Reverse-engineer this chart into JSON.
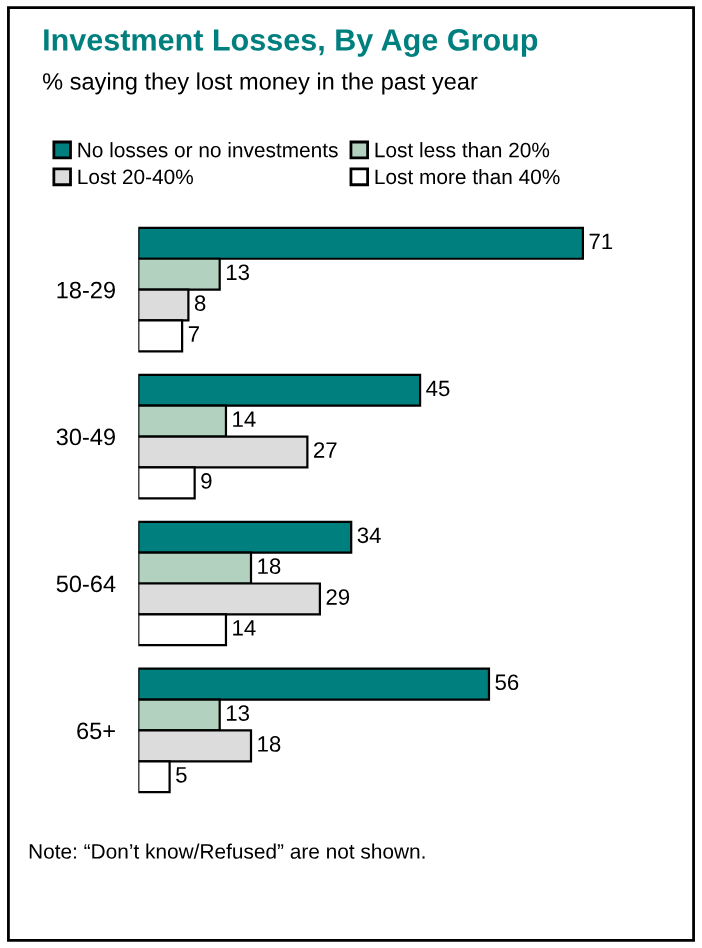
{
  "chart_data": {
    "type": "bar",
    "orientation": "horizontal",
    "title": "Investment Losses, By Age Group",
    "subtitle": "% saying they lost money in the past year",
    "categories": [
      "18-29",
      "30-49",
      "50-64",
      "65+"
    ],
    "series": [
      {
        "name": "No losses or no investments",
        "color": "#007f7f",
        "values": [
          71,
          45,
          34,
          56
        ]
      },
      {
        "name": "Lost less than 20%",
        "color": "#b3d1bf",
        "values": [
          13,
          14,
          18,
          13
        ]
      },
      {
        "name": "Lost 20-40%",
        "color": "#dcdcdc",
        "values": [
          8,
          27,
          29,
          18
        ]
      },
      {
        "name": "Lost more than 40%",
        "color": "#ffffff",
        "values": [
          7,
          9,
          14,
          5
        ]
      }
    ],
    "data_labels": true,
    "legend": "top",
    "grid": false,
    "tick_labels": "y",
    "annotations": [
      "Note: “Don’t know/Refused” are not shown."
    ]
  }
}
